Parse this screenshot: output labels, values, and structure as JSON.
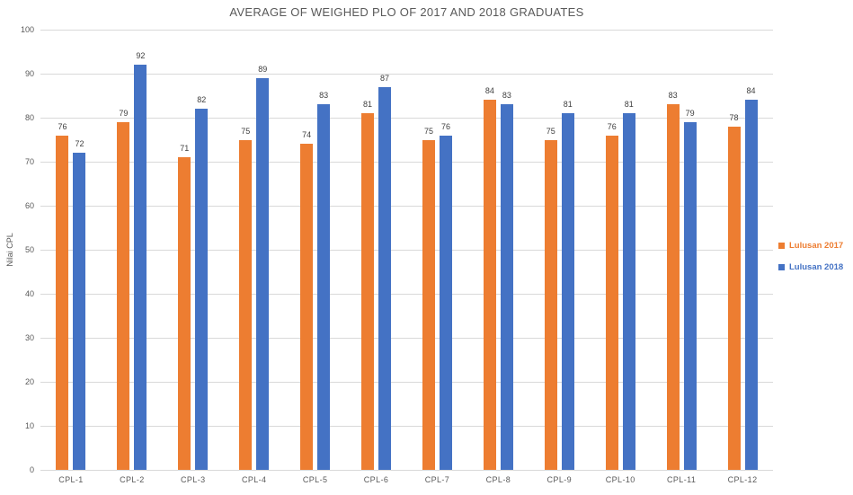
{
  "chart_data": {
    "type": "bar",
    "title": "AVERAGE OF WEIGHED PLO OF 2017 AND 2018 GRADUATES",
    "xlabel": "",
    "ylabel": "Nilai CPL",
    "categories": [
      "CPL-1",
      "CPL-2",
      "CPL-3",
      "CPL-4",
      "CPL-5",
      "CPL-6",
      "CPL-7",
      "CPL-8",
      "CPL-9",
      "CPL-10",
      "CPL-11",
      "CPL-12"
    ],
    "series": [
      {
        "name": "Lulusan 2017",
        "color": "#ED7D31",
        "values": [
          76,
          79,
          71,
          75,
          74,
          81,
          75,
          84,
          75,
          76,
          83,
          78
        ]
      },
      {
        "name": "Lulusan 2018",
        "color": "#4472C4",
        "values": [
          72,
          92,
          82,
          89,
          83,
          87,
          76,
          83,
          81,
          81,
          79,
          84
        ]
      }
    ],
    "ylim": [
      0,
      100
    ],
    "ytick_step": 10,
    "grid": true,
    "data_labels": true,
    "legend_position": "right"
  },
  "colors": {
    "grid": "#d9d9d9",
    "axis_text": "#595959",
    "title_text": "#595959",
    "data_label_text": "#404040",
    "background": "#ffffff"
  }
}
